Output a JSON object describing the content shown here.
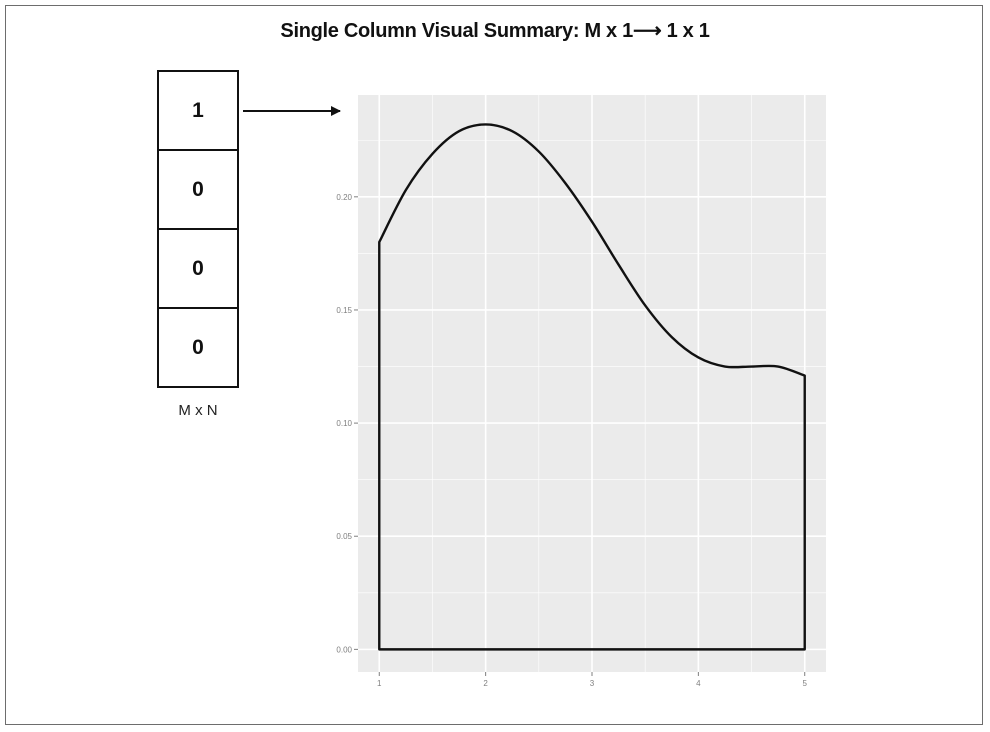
{
  "diagram": {
    "title": "Single Column Visual Summary: M x 1⟶ 1 x 1",
    "matrix_cells": [
      "1",
      "0",
      "0",
      "0"
    ],
    "matrix_label": "M x N"
  },
  "chart_data": {
    "type": "area",
    "x": [
      1.0,
      1.25,
      1.5,
      1.75,
      2.0,
      2.25,
      2.5,
      2.75,
      3.0,
      3.25,
      3.5,
      3.75,
      4.0,
      4.25,
      4.5,
      4.75,
      5.0
    ],
    "y": [
      0.18,
      0.203,
      0.219,
      0.229,
      0.232,
      0.229,
      0.22,
      0.206,
      0.189,
      0.17,
      0.152,
      0.138,
      0.129,
      0.125,
      0.125,
      0.125,
      0.121
    ],
    "x_ticks": [
      "1",
      "2",
      "3",
      "4",
      "5"
    ],
    "y_ticks": [
      "0.00",
      "0.05",
      "0.10",
      "0.15",
      "0.20"
    ],
    "xlim": [
      0.8,
      5.2
    ],
    "ylim": [
      -0.01,
      0.245
    ],
    "grid": true,
    "colors": {
      "panel": "#ebebeb",
      "grid": "#ffffff",
      "line": "#111111"
    }
  }
}
